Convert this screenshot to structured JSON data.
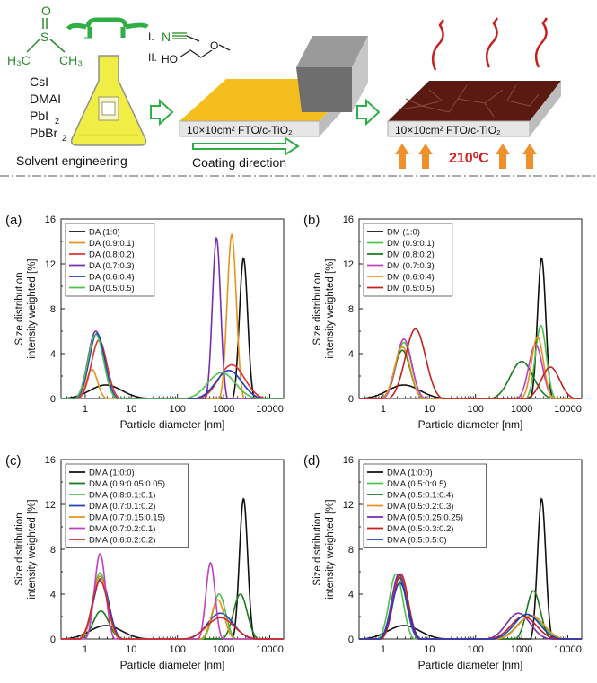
{
  "scheme": {
    "precursors": [
      "CsI",
      "DMAI",
      "PbI",
      "PbBr"
    ],
    "solvent_additives": [
      "I.",
      "II."
    ],
    "substrate_label": "10×10cm² FTO/c-TiO₂",
    "annealing_temperature": "210⁰C",
    "captions": [
      "Solvent engineering",
      "Coating direction"
    ]
  },
  "common_axes": {
    "xlabel": "Particle diameter [nm]",
    "ylabel_line1": "Size distribution",
    "ylabel_line2": "intensity weighted [%]",
    "xticks": [
      "1",
      "10",
      "100",
      "1000",
      "10000"
    ],
    "yticks": [
      "0",
      "4",
      "8",
      "12",
      "16"
    ]
  },
  "chart_data": [
    {
      "type": "line",
      "panel": "(a)",
      "xscale": "log",
      "xlim": [
        0.3,
        20000
      ],
      "ylim": [
        0,
        16
      ],
      "legend": "top-left",
      "series": [
        {
          "name": "DA (1:0)",
          "color": "#111111",
          "peaks": [
            {
              "d": 2.8,
              "h": 1.2,
              "w": 0.35
            },
            {
              "d": 2700,
              "h": 12.5,
              "w": 0.09
            }
          ]
        },
        {
          "name": "DA (0.9:0.1)",
          "color": "#e8921e",
          "peaks": [
            {
              "d": 1.4,
              "h": 2.6,
              "w": 0.12
            },
            {
              "d": 1500,
              "h": 14.6,
              "w": 0.1
            }
          ]
        },
        {
          "name": "DA (0.8:0.2)",
          "color": "#e03030",
          "peaks": [
            {
              "d": 2.0,
              "h": 5.2,
              "w": 0.17
            },
            {
              "d": 1500,
              "h": 3.0,
              "w": 0.28
            }
          ]
        },
        {
          "name": "DA (0.7:0.3)",
          "color": "#7a2cb0",
          "peaks": [
            {
              "d": 1.7,
              "h": 6.0,
              "w": 0.17
            },
            {
              "d": 700,
              "h": 14.3,
              "w": 0.09
            }
          ]
        },
        {
          "name": "DA (0.6:0.4)",
          "color": "#1f3fbf",
          "peaks": [
            {
              "d": 1.8,
              "h": 5.8,
              "w": 0.17
            },
            {
              "d": 1300,
              "h": 2.5,
              "w": 0.28
            }
          ]
        },
        {
          "name": "DA (0.5:0.5)",
          "color": "#4cc14c",
          "peaks": [
            {
              "d": 1.7,
              "h": 5.7,
              "w": 0.17
            },
            {
              "d": 900,
              "h": 2.3,
              "w": 0.3
            }
          ]
        }
      ]
    },
    {
      "type": "line",
      "panel": "(b)",
      "xscale": "log",
      "xlim": [
        0.3,
        20000
      ],
      "ylim": [
        0,
        16
      ],
      "legend": "top-left",
      "series": [
        {
          "name": "DM (1:0)",
          "color": "#111111",
          "peaks": [
            {
              "d": 2.8,
              "h": 1.2,
              "w": 0.35
            },
            {
              "d": 2700,
              "h": 12.5,
              "w": 0.09
            }
          ]
        },
        {
          "name": "DM (0.9:0.1)",
          "color": "#4cc14c",
          "peaks": [
            {
              "d": 2.8,
              "h": 5.0,
              "w": 0.17
            },
            {
              "d": 2600,
              "h": 6.5,
              "w": 0.12
            }
          ]
        },
        {
          "name": "DM (0.8:0.2)",
          "color": "#1a7a1a",
          "peaks": [
            {
              "d": 2.6,
              "h": 4.3,
              "w": 0.17
            },
            {
              "d": 1000,
              "h": 3.3,
              "w": 0.25
            }
          ]
        },
        {
          "name": "DM (0.7:0.3)",
          "color": "#c040c0",
          "peaks": [
            {
              "d": 2.8,
              "h": 5.3,
              "w": 0.17
            },
            {
              "d": 2000,
              "h": 4.8,
              "w": 0.15
            }
          ]
        },
        {
          "name": "DM (0.6:0.4)",
          "color": "#e8921e",
          "peaks": [
            {
              "d": 2.6,
              "h": 4.6,
              "w": 0.17
            },
            {
              "d": 2200,
              "h": 5.5,
              "w": 0.13
            }
          ]
        },
        {
          "name": "DM (0.5:0.5)",
          "color": "#c42020",
          "peaks": [
            {
              "d": 5.0,
              "h": 6.2,
              "w": 0.22
            },
            {
              "d": 4200,
              "h": 2.8,
              "w": 0.2
            }
          ]
        }
      ]
    },
    {
      "type": "line",
      "panel": "(c)",
      "xscale": "log",
      "xlim": [
        0.3,
        20000
      ],
      "ylim": [
        0,
        16
      ],
      "legend": "top-left",
      "series": [
        {
          "name": "DMA (1:0:0)",
          "color": "#111111",
          "peaks": [
            {
              "d": 2.8,
              "h": 1.2,
              "w": 0.35
            },
            {
              "d": 2700,
              "h": 12.5,
              "w": 0.09
            }
          ]
        },
        {
          "name": "DMA (0.9:0.05:0.05)",
          "color": "#1a7a1a",
          "peaks": [
            {
              "d": 2.2,
              "h": 2.5,
              "w": 0.17
            },
            {
              "d": 2300,
              "h": 4.0,
              "w": 0.15
            }
          ]
        },
        {
          "name": "DMA (0.8:0.1:0.1)",
          "color": "#4cc14c",
          "peaks": [
            {
              "d": 2.1,
              "h": 5.9,
              "w": 0.16
            },
            {
              "d": 800,
              "h": 4.0,
              "w": 0.14
            }
          ]
        },
        {
          "name": "DMA (0.7:0.1:0.2)",
          "color": "#1f3fbf",
          "peaks": [
            {
              "d": 2.2,
              "h": 5.4,
              "w": 0.17
            },
            {
              "d": 850,
              "h": 2.3,
              "w": 0.28
            }
          ]
        },
        {
          "name": "DMA (0.7:0.15:0.15)",
          "color": "#e8921e",
          "peaks": [
            {
              "d": 2.1,
              "h": 5.6,
              "w": 0.16
            },
            {
              "d": 750,
              "h": 3.5,
              "w": 0.14
            }
          ]
        },
        {
          "name": "DMA (0.7:0.2:0.1)",
          "color": "#c040c0",
          "peaks": [
            {
              "d": 2.1,
              "h": 7.6,
              "w": 0.12
            },
            {
              "d": 520,
              "h": 6.8,
              "w": 0.1
            }
          ]
        },
        {
          "name": "DMA (0.6:0.2:0.2)",
          "color": "#d02828",
          "peaks": [
            {
              "d": 2.1,
              "h": 5.2,
              "w": 0.17
            },
            {
              "d": 850,
              "h": 1.9,
              "w": 0.3
            }
          ]
        }
      ]
    },
    {
      "type": "line",
      "panel": "(d)",
      "xscale": "log",
      "xlim": [
        0.3,
        20000
      ],
      "ylim": [
        0,
        16
      ],
      "legend": "top-left",
      "series": [
        {
          "name": "DMA (1:0:0)",
          "color": "#111111",
          "peaks": [
            {
              "d": 2.8,
              "h": 1.2,
              "w": 0.35
            },
            {
              "d": 2700,
              "h": 12.5,
              "w": 0.09
            }
          ]
        },
        {
          "name": "DMA (0.5:0:0.5)",
          "color": "#4cc14c",
          "peaks": [
            {
              "d": 1.9,
              "h": 5.8,
              "w": 0.15
            },
            {
              "d": 1500,
              "h": 2.0,
              "w": 0.28
            }
          ]
        },
        {
          "name": "DMA (0.5:0.1:0.4)",
          "color": "#1a7a1a",
          "peaks": [
            {
              "d": 2.2,
              "h": 5.5,
              "w": 0.16
            },
            {
              "d": 1800,
              "h": 4.3,
              "w": 0.15
            }
          ]
        },
        {
          "name": "DMA (0.5:0.2:0.3)",
          "color": "#e8921e",
          "peaks": [
            {
              "d": 2.3,
              "h": 5.6,
              "w": 0.16
            },
            {
              "d": 1600,
              "h": 2.1,
              "w": 0.28
            }
          ]
        },
        {
          "name": "DMA (0.5:0.25:0.25)",
          "color": "#7a2cb0",
          "peaks": [
            {
              "d": 2.2,
              "h": 5.8,
              "w": 0.16
            },
            {
              "d": 850,
              "h": 2.3,
              "w": 0.26
            }
          ]
        },
        {
          "name": "DMA (0.5:0.3:0.2)",
          "color": "#c42020",
          "peaks": [
            {
              "d": 2.4,
              "h": 5.8,
              "w": 0.16
            },
            {
              "d": 1100,
              "h": 2.0,
              "w": 0.28
            }
          ]
        },
        {
          "name": "DMA (0.5:0.5:0)",
          "color": "#1f3fbf",
          "peaks": [
            {
              "d": 2.3,
              "h": 5.0,
              "w": 0.17
            },
            {
              "d": 1300,
              "h": 2.2,
              "w": 0.28
            }
          ]
        }
      ]
    }
  ]
}
